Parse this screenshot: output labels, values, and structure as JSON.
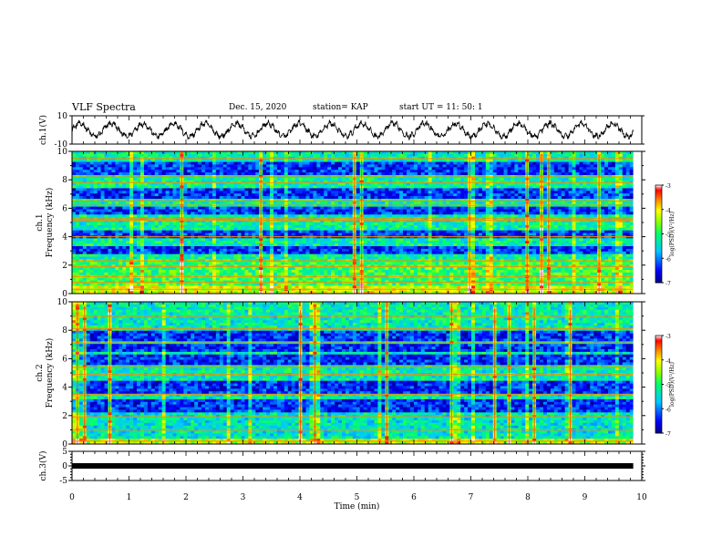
{
  "header": {
    "title": "VLF Spectra",
    "date": "Dec. 15, 2020",
    "station": "station= KAP",
    "start": "start  UT =   11: 50: 1"
  },
  "chart_data": [
    {
      "type": "line",
      "panel": "ch1-waveform",
      "ylabel": "ch.1(V)",
      "ylim": [
        -10,
        10
      ],
      "yticks": [
        "10",
        "-10"
      ],
      "xlim": [
        0,
        10
      ],
      "period_min": 0.55,
      "series_color": "#000000"
    },
    {
      "type": "heatmap",
      "panel": "ch1-spectrogram",
      "ylabel": "ch.1",
      "ylabel2": "Frequency  (kHz)",
      "ylim": [
        0,
        10
      ],
      "yticks": [
        "0",
        "2",
        "4",
        "6",
        "8",
        "10"
      ],
      "xlim": [
        0,
        10
      ],
      "data_end_min": 9.85,
      "colorbar": {
        "label": "log(PSD)(V²/Hz)",
        "range": [
          -7,
          -3
        ],
        "ticks": [
          "-3",
          "-4",
          "-5",
          "-6",
          "-7"
        ],
        "colors": [
          "#000080",
          "#0000ff",
          "#00c0ff",
          "#00ff80",
          "#80ff00",
          "#ffff00",
          "#ff8000",
          "#ff0000",
          "#ffffff"
        ]
      },
      "horizontal_lines_khz": [
        0.3,
        0.8,
        1.2,
        1.9,
        2.3,
        4.0,
        5.15,
        5.3,
        6.2,
        6.5,
        7.8,
        8.2,
        9.5
      ],
      "dark_bands_khz": [
        [
          2.7,
          3.4
        ],
        [
          3.9,
          4.4
        ],
        [
          5.5,
          6.1
        ],
        [
          6.6,
          7.4
        ],
        [
          8.3,
          9.2
        ]
      ],
      "mean_level_profile": "high below 2.5 kHz, low in 2.7-3.4 kHz band"
    },
    {
      "type": "heatmap",
      "panel": "ch2-spectrogram",
      "ylabel": "ch.2",
      "ylabel2": "Frequency  (kHz)",
      "ylim": [
        0,
        10
      ],
      "yticks": [
        "0",
        "2",
        "4",
        "6",
        "8",
        "10"
      ],
      "xlim": [
        0,
        10
      ],
      "data_end_min": 9.85,
      "colorbar": {
        "label": "log(PSD)(V²/Hz)",
        "range": [
          -7,
          -3
        ],
        "ticks": [
          "-3",
          "-4",
          "-5",
          "-6",
          "-7"
        ]
      },
      "horizontal_lines_khz": [
        0.2,
        1.0,
        1.9,
        3.5,
        4.9,
        5.4,
        7.1,
        8.1,
        9.0
      ],
      "dark_bands_khz": [
        [
          2.3,
          3.2
        ],
        [
          3.6,
          4.4
        ],
        [
          5.6,
          6.3
        ],
        [
          6.5,
          7.0
        ],
        [
          7.3,
          7.9
        ]
      ],
      "mean_level_profile": "medium below 2.2 kHz, low in 2.3-3.2 kHz band"
    },
    {
      "type": "line",
      "panel": "ch3",
      "ylabel": "ch.3(V)",
      "ylim": [
        -5,
        5
      ],
      "yticks": [
        "5",
        "0",
        "-5"
      ],
      "xlim": [
        0,
        10
      ],
      "value": 0,
      "xlabel": "Time  (min)",
      "xticks": [
        "0",
        "1",
        "2",
        "3",
        "4",
        "5",
        "6",
        "7",
        "8",
        "9",
        "10"
      ]
    }
  ]
}
